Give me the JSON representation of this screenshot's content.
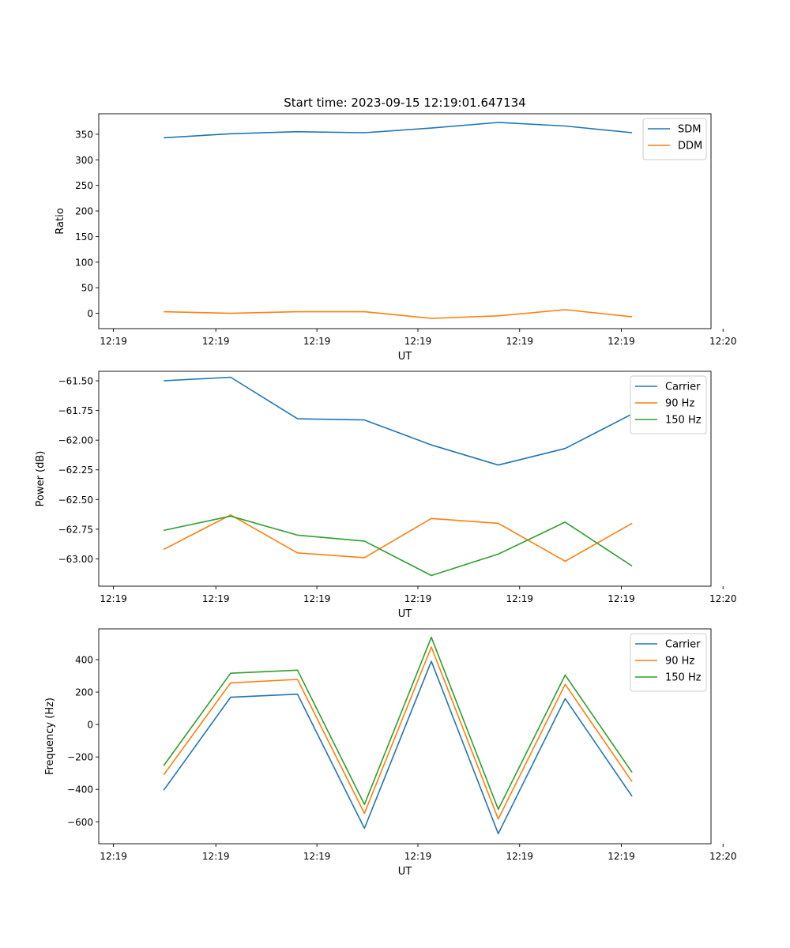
{
  "chart_data": [
    {
      "type": "line",
      "title": "Start time: 2023-09-15 12:19:01.647134",
      "xlabel": "UT",
      "ylabel": "Ratio",
      "x_tick_labels": [
        "12:19",
        "12:19",
        "12:19",
        "12:19",
        "12:19",
        "12:19",
        "12:20"
      ],
      "y_ticks": [
        0,
        50,
        100,
        150,
        200,
        250,
        300,
        350
      ],
      "ylim": [
        -30,
        390
      ],
      "series": [
        {
          "name": "SDM",
          "color": "#1f77b4",
          "values": [
            343,
            351,
            355,
            353,
            362,
            373,
            366,
            353
          ]
        },
        {
          "name": "DDM",
          "color": "#ff7f0e",
          "values": [
            3,
            0,
            3,
            3,
            -10,
            -5,
            7,
            -7
          ]
        }
      ]
    },
    {
      "type": "line",
      "title": "",
      "xlabel": "UT",
      "ylabel": "Power (dB)",
      "x_tick_labels": [
        "12:19",
        "12:19",
        "12:19",
        "12:19",
        "12:19",
        "12:19",
        "12:20"
      ],
      "y_ticks": [
        -61.5,
        -61.75,
        -62.0,
        -62.25,
        -62.5,
        -62.75,
        -63.0
      ],
      "y_tick_labels": [
        "−61.50",
        "−61.75",
        "−62.00",
        "−62.25",
        "−62.50",
        "−62.75",
        "−63.00"
      ],
      "ylim": [
        -63.23,
        -61.42
      ],
      "series": [
        {
          "name": "Carrier",
          "color": "#1f77b4",
          "values": [
            -61.5,
            -61.47,
            -61.82,
            -61.83,
            -62.04,
            -62.21,
            -62.07,
            -61.78
          ]
        },
        {
          "name": "90 Hz",
          "color": "#ff7f0e",
          "values": [
            -62.92,
            -62.63,
            -62.95,
            -62.99,
            -62.66,
            -62.7,
            -63.02,
            -62.7
          ]
        },
        {
          "name": "150 Hz",
          "color": "#2ca02c",
          "values": [
            -62.76,
            -62.64,
            -62.8,
            -62.85,
            -63.14,
            -62.96,
            -62.69,
            -63.06
          ]
        }
      ]
    },
    {
      "type": "line",
      "title": "",
      "xlabel": "UT",
      "ylabel": "Frequency (Hz)",
      "x_tick_labels": [
        "12:19",
        "12:19",
        "12:19",
        "12:19",
        "12:19",
        "12:19",
        "12:20"
      ],
      "y_ticks": [
        -600,
        -400,
        -200,
        0,
        200,
        400
      ],
      "y_tick_labels": [
        "−600",
        "−400",
        "−200",
        "0",
        "200",
        "400"
      ],
      "ylim": [
        -735,
        590
      ],
      "series": [
        {
          "name": "Carrier",
          "color": "#1f77b4",
          "values": [
            -405,
            168,
            187,
            -640,
            390,
            -673,
            160,
            -443
          ]
        },
        {
          "name": "90 Hz",
          "color": "#ff7f0e",
          "values": [
            -310,
            257,
            278,
            -548,
            478,
            -583,
            248,
            -353
          ]
        },
        {
          "name": "150 Hz",
          "color": "#2ca02c",
          "values": [
            -253,
            316,
            335,
            -493,
            538,
            -523,
            305,
            -295
          ]
        }
      ]
    }
  ]
}
